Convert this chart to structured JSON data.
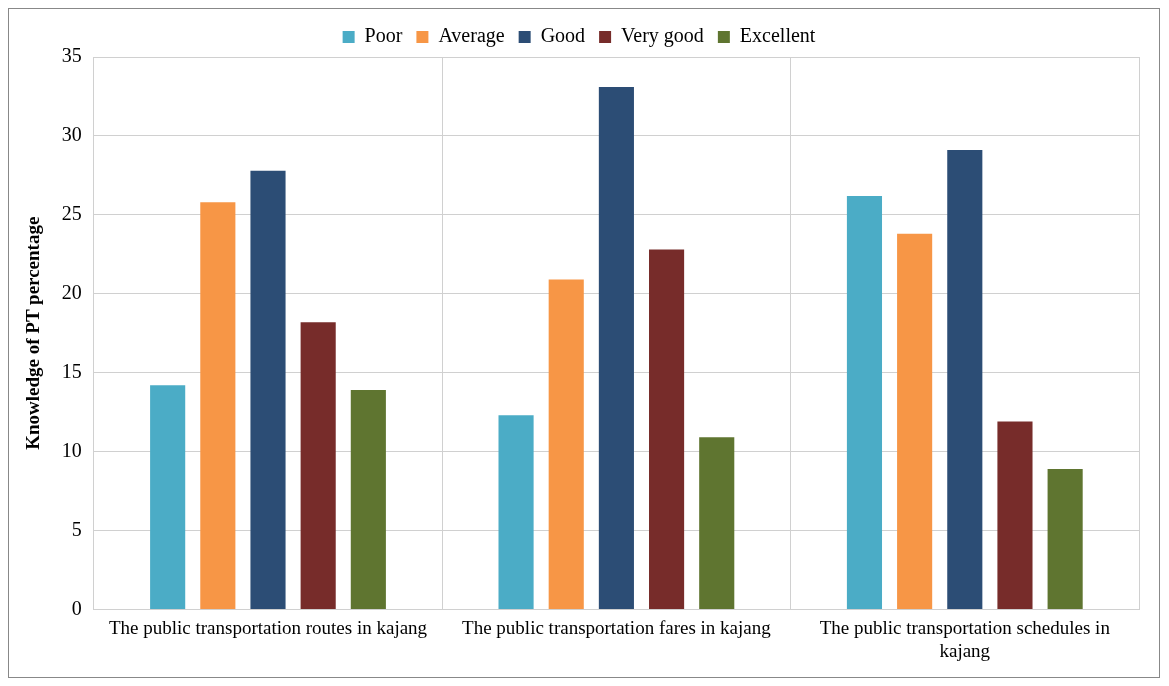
{
  "chart_data": {
    "type": "bar",
    "ylabel": "Knowledge of PT percentage",
    "categories": [
      "The public transportation routes in kajang",
      "The public transportation fares in kajang",
      "The public transportation schedules in kajang"
    ],
    "series": [
      {
        "name": "Poor",
        "color": "#4bacc6",
        "values": [
          14.2,
          12.3,
          26.2
        ]
      },
      {
        "name": "Average",
        "color": "#f79646",
        "values": [
          25.8,
          20.9,
          23.8
        ]
      },
      {
        "name": "Good",
        "color": "#2c4d75",
        "values": [
          27.8,
          33.1,
          29.1
        ]
      },
      {
        "name": "Very good",
        "color": "#772c2a",
        "values": [
          18.2,
          22.8,
          11.9
        ]
      },
      {
        "name": "Excellent",
        "color": "#5f7530",
        "values": [
          13.9,
          10.9,
          8.9
        ]
      }
    ],
    "ylim": [
      0,
      35
    ],
    "yticks": [
      0,
      5,
      10,
      15,
      20,
      25,
      30,
      35
    ],
    "grid": true,
    "legend": "top"
  }
}
